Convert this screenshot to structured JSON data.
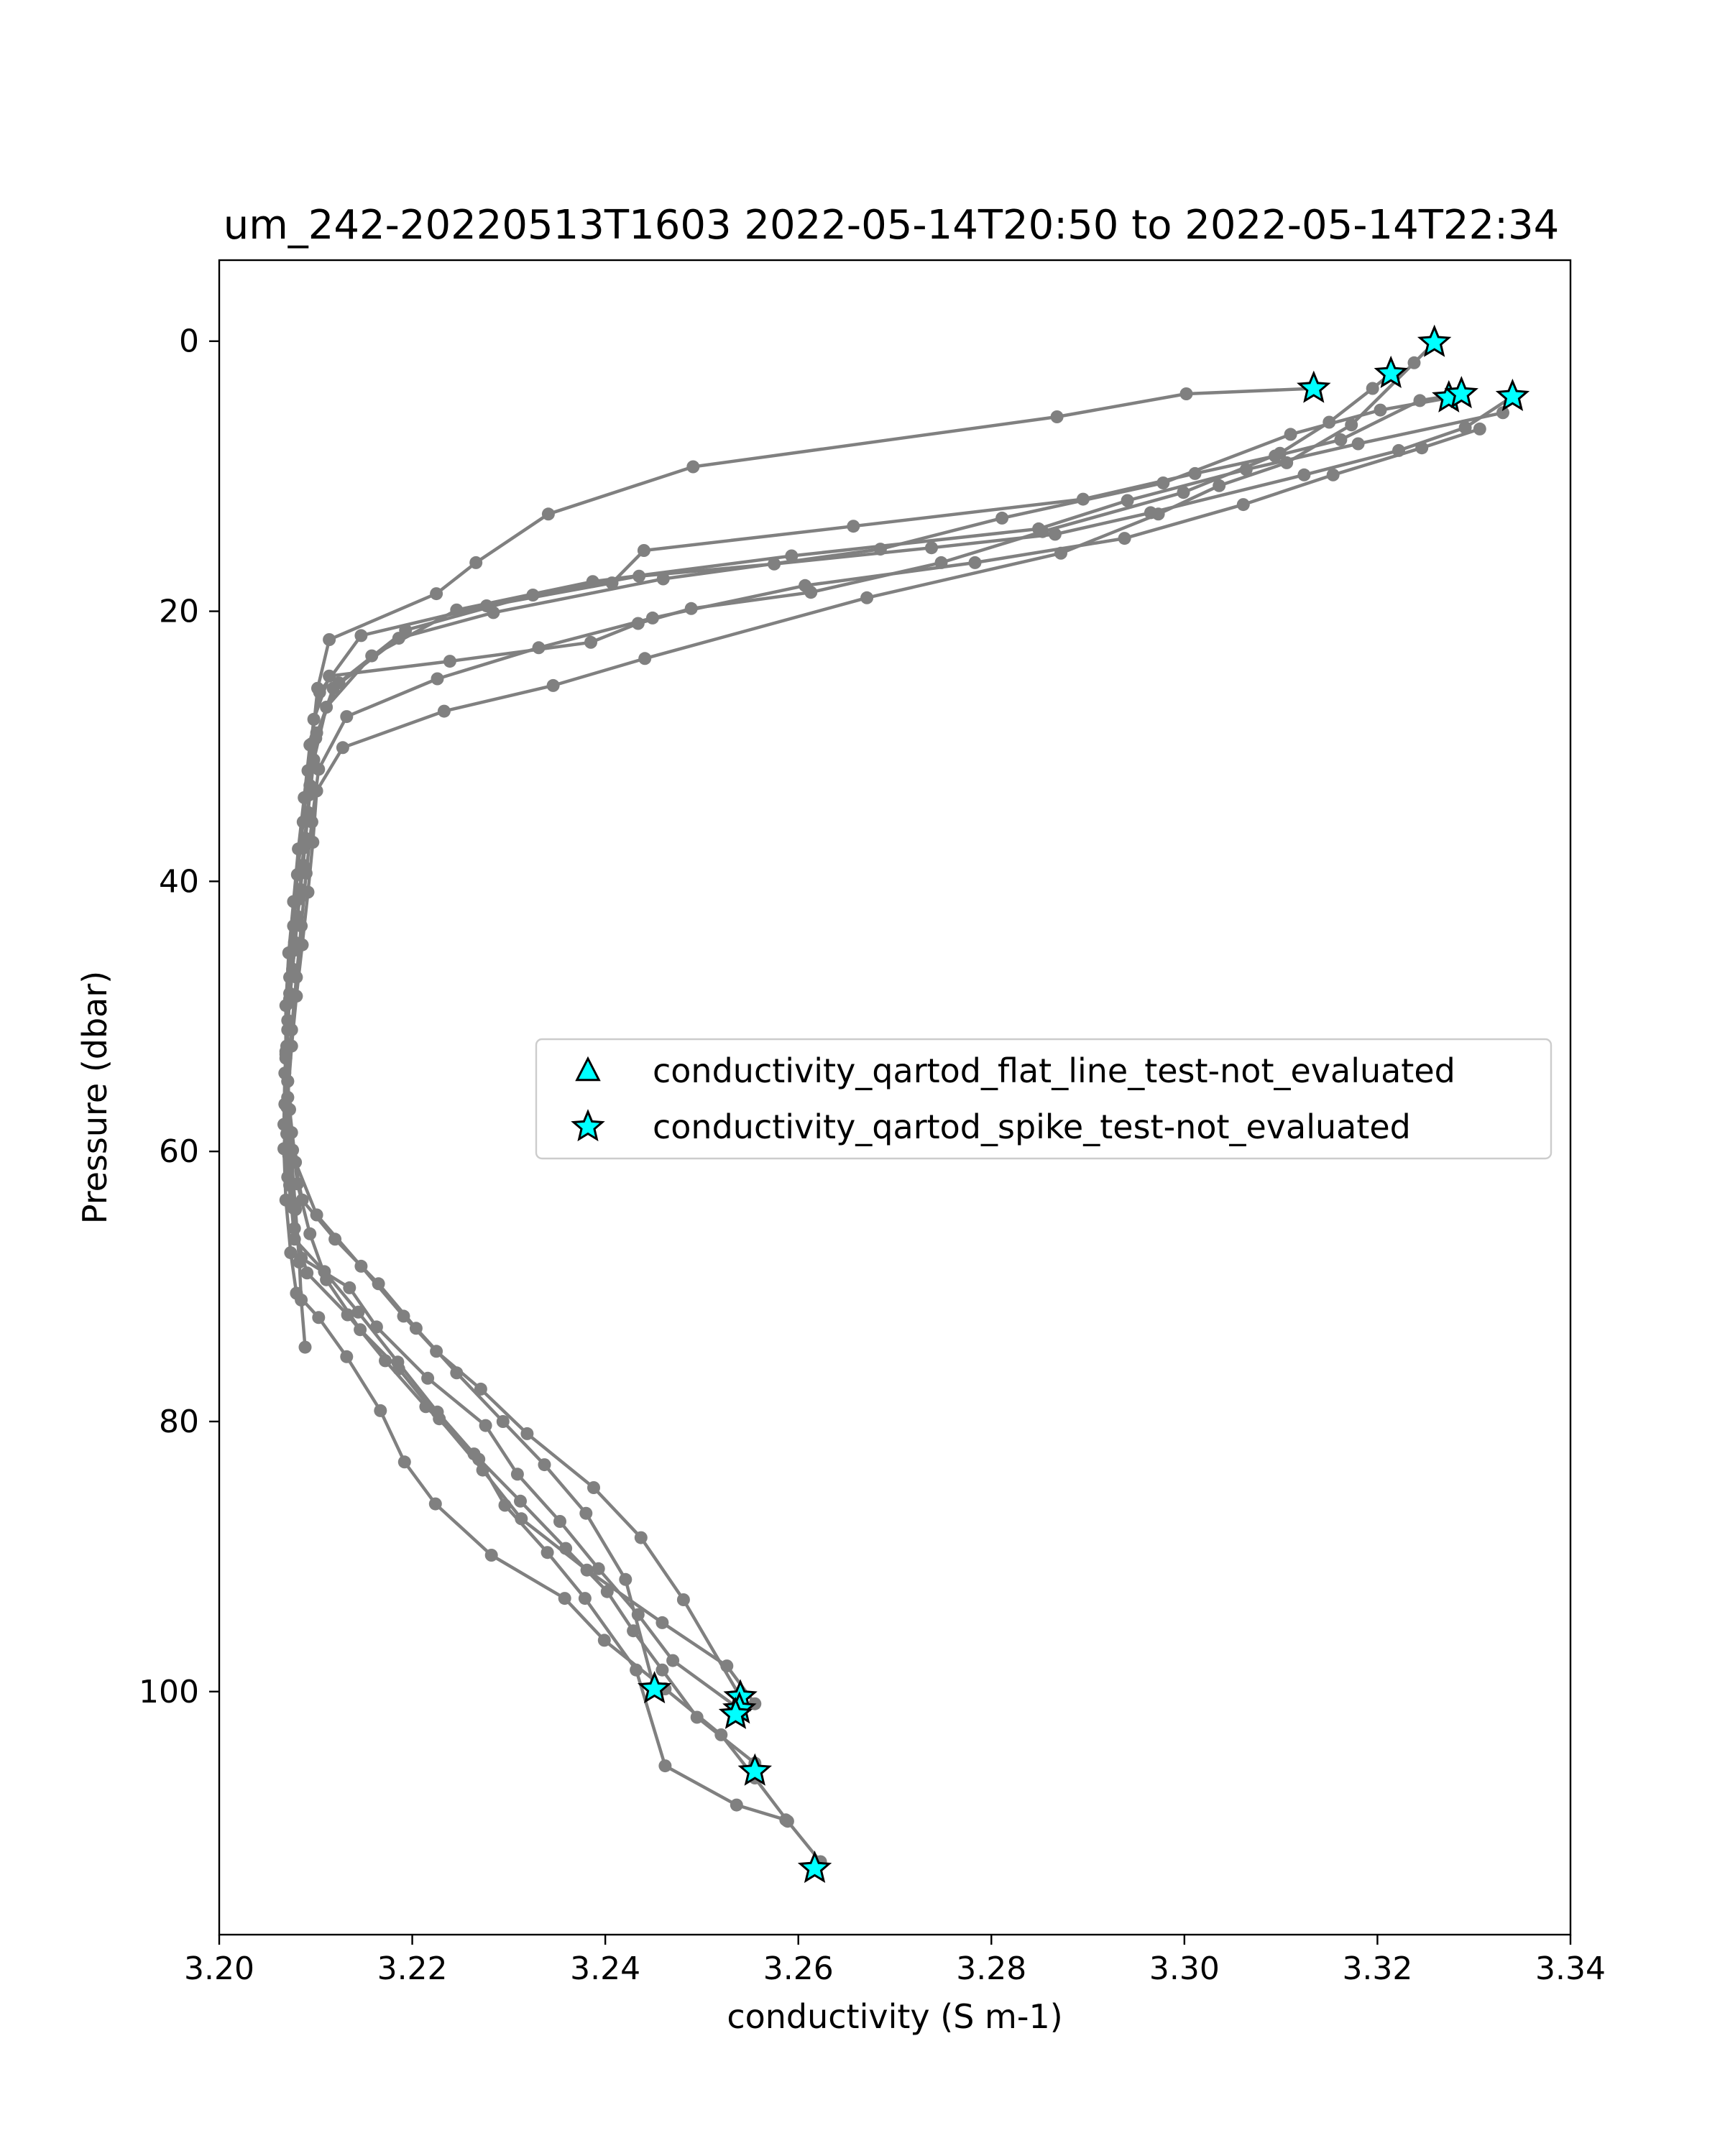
{
  "chart_data": {
    "type": "scatter",
    "title": "um_242-20220513T1603 2022-05-14T20:50 to 2022-05-14T22:34",
    "xlabel": "conductivity (S m-1)",
    "ylabel": "Pressure (dbar)",
    "xlim": [
      3.2,
      3.34
    ],
    "ylim": [
      118,
      -6
    ],
    "y_inverted": true,
    "grid": false,
    "legend_position": "center-right",
    "xticks": [
      3.2,
      3.22,
      3.24,
      3.26,
      3.28,
      3.3,
      3.32,
      3.34
    ],
    "xtick_labels": [
      "3.20",
      "3.22",
      "3.24",
      "3.26",
      "3.28",
      "3.30",
      "3.32",
      "3.34"
    ],
    "yticks": [
      0,
      20,
      40,
      60,
      80,
      100
    ],
    "ytick_labels": [
      "0",
      "20",
      "40",
      "60",
      "80",
      "100"
    ],
    "colors": {
      "profile": "#808080",
      "flag_fill": "#00ffff",
      "flag_edge": "#000000"
    },
    "profiles": [
      {
        "x": [
          3.3134,
          3.3002,
          3.2868,
          3.2491,
          3.2341,
          3.2266,
          3.2225,
          3.2114,
          3.2102,
          3.2096,
          3.2093,
          3.2088,
          3.2083,
          3.2078,
          3.2072,
          3.2069,
          3.207,
          3.2075,
          3.2079,
          3.2083,
          3.2085,
          3.2089
        ],
        "y": [
          3.5,
          3.9,
          5.6,
          9.3,
          12.8,
          16.4,
          18.7,
          22.1,
          25.7,
          29.8,
          33.6,
          37.5,
          41.3,
          45.1,
          49.0,
          52.8,
          56.7,
          60.5,
          64.3,
          68.2,
          71.0,
          74.5
        ]
      },
      {
        "x": [
          3.3259,
          3.3238,
          3.3173,
          3.3106,
          3.3036,
          3.2973,
          3.2872,
          3.2671,
          3.2441,
          3.2346,
          3.2233,
          3.2128,
          3.2101,
          3.2097,
          3.2092,
          3.2086,
          3.208,
          3.2075,
          3.2071,
          3.2067,
          3.2069,
          3.2074,
          3.208,
          3.2103,
          3.2132,
          3.2167,
          3.2192,
          3.2224,
          3.2282,
          3.2358,
          3.2399,
          3.2462,
          3.252,
          3.2555,
          3.2589,
          3.2623
        ],
        "y": [
          0.1,
          1.6,
          6.2,
          9.0,
          10.7,
          12.8,
          15.7,
          19.0,
          23.5,
          25.5,
          27.4,
          30.1,
          33.3,
          37.1,
          40.8,
          44.7,
          48.5,
          52.2,
          56.0,
          59.8,
          63.6,
          67.5,
          70.5,
          72.3,
          75.2,
          79.2,
          83.0,
          86.1,
          89.9,
          93.1,
          96.2,
          99.8,
          103.2,
          106.4,
          109.6,
          112.6
        ]
      },
      {
        "x": [
          3.3214,
          3.3195,
          3.315,
          3.3099,
          3.2999,
          3.2853,
          3.2748,
          3.2613,
          3.2489,
          3.2434,
          3.2385,
          3.2239,
          3.2114,
          3.2098,
          3.2092,
          3.2087,
          3.2081,
          3.2077,
          3.2073,
          3.2071,
          3.2071,
          3.2075,
          3.2081,
          3.2094,
          3.2111,
          3.2146,
          3.2186,
          3.2228,
          3.2273,
          3.2313,
          3.2381,
          3.2459,
          3.2526,
          3.2555
        ],
        "y": [
          2.4,
          3.5,
          6.0,
          8.3,
          11.2,
          14.1,
          16.4,
          18.6,
          19.8,
          20.9,
          22.3,
          23.7,
          24.8,
          28.0,
          31.8,
          35.6,
          39.5,
          43.3,
          47.1,
          51.0,
          54.8,
          58.6,
          62.4,
          66.1,
          69.5,
          73.2,
          76.1,
          79.8,
          83.6,
          87.2,
          91.0,
          94.9,
          98.1,
          100.9
        ]
      },
      {
        "x": [
          3.3287,
          3.3244,
          3.3162,
          3.3094,
          3.3011,
          3.2895,
          3.2657,
          3.244,
          3.2407,
          3.2277,
          3.2147,
          3.2104,
          3.2094,
          3.2088,
          3.2082,
          3.2077,
          3.2072,
          3.2069,
          3.2069,
          3.2073,
          3.2079,
          3.2101,
          3.2147,
          3.2191,
          3.2225,
          3.2271,
          3.2319,
          3.2388,
          3.2437,
          3.2481,
          3.254
        ],
        "y": [
          3.9,
          4.4,
          7.3,
          8.5,
          9.8,
          11.7,
          13.7,
          15.5,
          17.9,
          19.6,
          21.8,
          26.0,
          29.9,
          33.8,
          37.6,
          41.5,
          45.3,
          49.2,
          53.1,
          56.9,
          60.8,
          64.7,
          68.5,
          72.2,
          74.8,
          77.6,
          80.9,
          84.9,
          88.6,
          93.2,
          100.4
        ]
      },
      {
        "x": [
          3.334,
          3.3291,
          3.3222,
          3.3124,
          3.2965,
          3.2866,
          3.2738,
          3.2575,
          3.2435,
          3.2325,
          3.2193,
          3.2124,
          3.2101,
          3.2094,
          3.2089,
          3.2084,
          3.2078,
          3.2073,
          3.207,
          3.2071,
          3.2076,
          3.2086,
          3.212,
          3.2165,
          3.2204,
          3.2246,
          3.2294,
          3.2337,
          3.238,
          3.2421,
          3.2451
        ],
        "y": [
          4.1,
          6.4,
          8.1,
          9.9,
          12.7,
          14.3,
          15.3,
          16.5,
          17.4,
          18.8,
          21.4,
          25.3,
          29.0,
          32.9,
          36.8,
          40.6,
          44.5,
          48.3,
          52.2,
          56.0,
          59.9,
          63.6,
          66.5,
          69.8,
          73.1,
          76.4,
          80.0,
          83.2,
          86.8,
          91.7,
          99.8
        ]
      },
      {
        "x": [
          3.3274,
          3.3203,
          3.311,
          3.2978,
          3.2811,
          3.2685,
          3.246,
          3.2284,
          3.2186,
          3.2118,
          3.21,
          3.2094,
          3.2088,
          3.2083,
          3.2078,
          3.2073,
          3.2069,
          3.2068,
          3.2072,
          3.2077,
          3.2085,
          3.2135,
          3.2163,
          3.2216,
          3.2276,
          3.2309,
          3.2353,
          3.2393,
          3.2434,
          3.247,
          3.2539
        ],
        "y": [
          4.2,
          5.1,
          6.9,
          10.5,
          13.1,
          15.4,
          17.6,
          20.1,
          22.0,
          25.7,
          29.4,
          33.3,
          37.2,
          41.0,
          44.9,
          48.7,
          52.6,
          56.5,
          60.3,
          64.2,
          67.9,
          70.1,
          73.0,
          76.8,
          80.3,
          83.9,
          87.4,
          90.9,
          94.3,
          97.7,
          101.3
        ]
      },
      {
        "x": [
          3.333,
          3.318,
          3.3064,
          3.2941,
          3.2849,
          3.2593,
          3.2387,
          3.2246,
          3.2158,
          3.2111,
          3.2098,
          3.2092,
          3.2087,
          3.2081,
          3.2076,
          3.2071,
          3.2068,
          3.2067,
          3.2071,
          3.2078,
          3.2091,
          3.2133,
          3.2172,
          3.2214,
          3.2264,
          3.2312,
          3.2359,
          3.2402,
          3.2429,
          3.2459,
          3.2495,
          3.2555
        ],
        "y": [
          5.3,
          7.6,
          9.5,
          11.8,
          13.9,
          15.9,
          17.8,
          19.9,
          23.3,
          27.1,
          31.0,
          34.9,
          38.8,
          42.6,
          46.5,
          50.3,
          54.2,
          58.0,
          61.9,
          65.7,
          69.0,
          72.1,
          75.5,
          78.9,
          82.4,
          85.9,
          89.4,
          92.6,
          95.5,
          98.4,
          101.9,
          105.3
        ]
      },
      {
        "x": [
          3.3306,
          3.3246,
          3.3154,
          3.3061,
          3.2938,
          3.2783,
          3.2607,
          3.2449,
          3.2331,
          3.2226,
          3.2132,
          3.2103,
          3.2096,
          3.209,
          3.2085,
          3.208,
          3.2075,
          3.2071,
          3.207,
          3.2073,
          3.2078,
          3.2109,
          3.2144,
          3.2185,
          3.2226,
          3.2269,
          3.2296,
          3.234,
          3.2379,
          3.2432,
          3.2462,
          3.2536,
          3.2587
        ],
        "y": [
          6.5,
          7.9,
          9.9,
          12.1,
          14.6,
          16.4,
          18.1,
          20.5,
          22.7,
          25.0,
          27.8,
          31.7,
          35.6,
          39.4,
          43.3,
          47.1,
          51.0,
          54.8,
          58.7,
          62.5,
          66.5,
          68.9,
          71.9,
          75.6,
          79.3,
          82.8,
          86.2,
          89.7,
          93.1,
          98.4,
          105.5,
          108.4,
          109.5
        ]
      }
    ],
    "series": [
      {
        "name": "conductivity_qartod_flat_line_test-not_evaluated",
        "marker": "triangle",
        "x": [],
        "y": []
      },
      {
        "name": "conductivity_qartod_spike_test-not_evaluated",
        "marker": "star",
        "x": [
          3.3259,
          3.3214,
          3.3134,
          3.3274,
          3.3287,
          3.334,
          3.2451,
          3.254,
          3.2539,
          3.2535,
          3.2555,
          3.2617
        ],
        "y": [
          0.1,
          2.4,
          3.5,
          4.2,
          3.9,
          4.1,
          99.8,
          100.4,
          101.3,
          101.7,
          105.9,
          113.1
        ]
      }
    ]
  }
}
